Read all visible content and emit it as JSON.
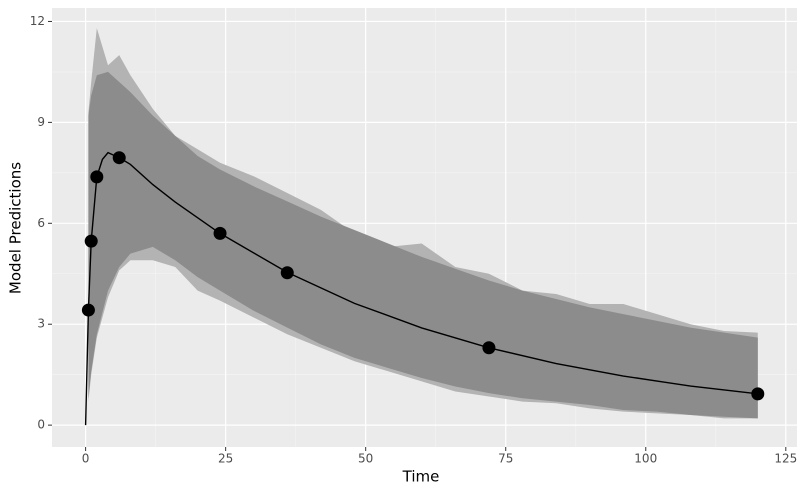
{
  "chart_data": {
    "type": "band-line",
    "x_label": "Time",
    "y_label": "Model Predictions",
    "xlim": [
      -6,
      127
    ],
    "ylim": [
      -0.65,
      12.4
    ],
    "xticks": [
      0,
      25,
      50,
      75,
      100,
      125
    ],
    "yticks": [
      0,
      3,
      6,
      9,
      12
    ],
    "grid": true,
    "minor_grid": true,
    "bands": [
      {
        "color": "#b3b3b3",
        "x": [
          0.5,
          1,
          2,
          4,
          6,
          8,
          12,
          16,
          20,
          24,
          30,
          36,
          42,
          48,
          54,
          60,
          66,
          72,
          78,
          84,
          90,
          96,
          102,
          108,
          114,
          120
        ],
        "upper": [
          9.3,
          10.2,
          11.8,
          10.7,
          11.0,
          10.4,
          9.4,
          8.6,
          8.2,
          7.8,
          7.4,
          6.9,
          6.4,
          5.7,
          5.3,
          5.4,
          4.7,
          4.5,
          4.0,
          3.9,
          3.6,
          3.6,
          3.3,
          3.0,
          2.8,
          2.75
        ],
        "lower": [
          0.7,
          1.5,
          2.6,
          3.8,
          4.6,
          4.9,
          4.9,
          4.7,
          4.0,
          3.7,
          3.2,
          2.7,
          2.3,
          1.9,
          1.6,
          1.3,
          1.0,
          0.85,
          0.7,
          0.65,
          0.5,
          0.4,
          0.35,
          0.3,
          0.2,
          0.2
        ]
      },
      {
        "color": "#8c8c8c",
        "x": [
          0.5,
          1,
          2,
          4,
          6,
          8,
          12,
          16,
          20,
          24,
          30,
          36,
          42,
          48,
          54,
          60,
          66,
          72,
          78,
          84,
          90,
          96,
          102,
          108,
          114,
          120
        ],
        "upper": [
          9.2,
          9.8,
          10.4,
          10.5,
          10.2,
          9.9,
          9.2,
          8.6,
          8.0,
          7.6,
          7.1,
          6.65,
          6.2,
          5.8,
          5.4,
          5.0,
          4.65,
          4.3,
          4.0,
          3.75,
          3.5,
          3.3,
          3.1,
          2.9,
          2.75,
          2.6
        ],
        "lower": [
          0.8,
          1.6,
          2.7,
          4.0,
          4.7,
          5.1,
          5.3,
          4.9,
          4.4,
          4.0,
          3.4,
          2.9,
          2.4,
          2.0,
          1.7,
          1.4,
          1.15,
          0.95,
          0.8,
          0.7,
          0.6,
          0.45,
          0.4,
          0.3,
          0.25,
          0.2
        ]
      }
    ],
    "line": {
      "color": "#000000",
      "x": [
        0,
        0.5,
        1,
        2,
        3,
        4,
        6,
        8,
        12,
        16,
        24,
        36,
        48,
        60,
        72,
        84,
        96,
        108,
        120
      ],
      "values": [
        0,
        3.42,
        5.47,
        7.38,
        7.9,
        8.1,
        7.95,
        7.75,
        7.15,
        6.63,
        5.7,
        4.54,
        3.62,
        2.89,
        2.3,
        1.83,
        1.46,
        1.16,
        0.93
      ]
    },
    "points": {
      "color": "#000000",
      "x": [
        0.5,
        1,
        2,
        6,
        24,
        36,
        72,
        120
      ],
      "values": [
        3.42,
        5.47,
        7.38,
        7.95,
        5.7,
        4.53,
        2.3,
        0.93
      ]
    }
  }
}
